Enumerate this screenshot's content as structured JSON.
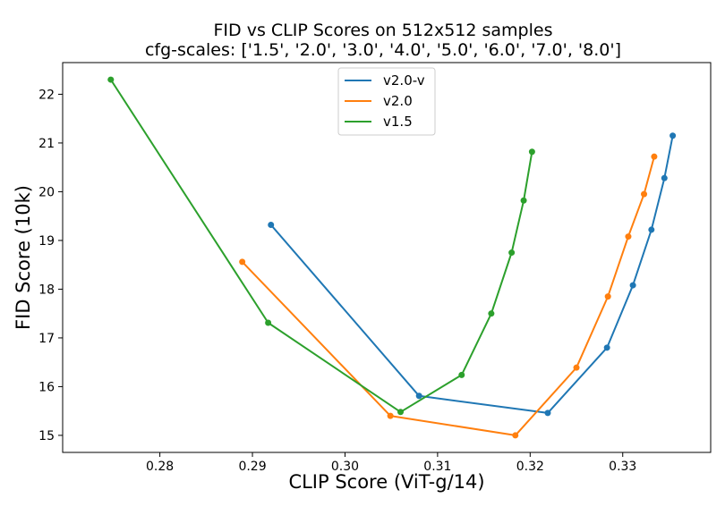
{
  "chart_data": {
    "type": "line",
    "title": "FID vs CLIP Scores on 512x512 samples",
    "subtitle": "cfg-scales: ['1.5', '2.0', '3.0', '4.0', '5.0', '6.0', '7.0', '8.0']",
    "xlabel": "CLIP Score (ViT-g/14)",
    "ylabel": "FID Score (10k)",
    "xlim": [
      0.2695,
      0.3395
    ],
    "ylim": [
      14.65,
      22.65
    ],
    "xticks": [
      0.28,
      0.29,
      0.3,
      0.31,
      0.32,
      0.33
    ],
    "xtick_labels": [
      "0.28",
      "0.29",
      "0.30",
      "0.31",
      "0.32",
      "0.33"
    ],
    "yticks": [
      15,
      16,
      17,
      18,
      19,
      20,
      21,
      22
    ],
    "ytick_labels": [
      "15",
      "16",
      "17",
      "18",
      "19",
      "20",
      "21",
      "22"
    ],
    "legend_position": "top-center",
    "series": [
      {
        "name": "v2.0-v",
        "color": "#1f77b4",
        "x": [
          0.292,
          0.308,
          0.3219,
          0.3283,
          0.3311,
          0.3331,
          0.3345,
          0.3354
        ],
        "y": [
          19.32,
          15.81,
          15.46,
          16.8,
          18.08,
          19.22,
          20.28,
          21.15
        ]
      },
      {
        "name": "v2.0",
        "color": "#ff7f0e",
        "x": [
          0.2889,
          0.3049,
          0.3184,
          0.325,
          0.3284,
          0.3306,
          0.3323,
          0.3334
        ],
        "y": [
          18.56,
          15.4,
          15.0,
          16.39,
          17.85,
          19.08,
          19.95,
          20.72
        ]
      },
      {
        "name": "v1.5",
        "color": "#2ca02c",
        "x": [
          0.2747,
          0.2917,
          0.306,
          0.3126,
          0.3158,
          0.318,
          0.3193,
          0.3202
        ],
        "y": [
          22.3,
          17.31,
          15.48,
          16.24,
          17.5,
          18.75,
          19.82,
          20.82
        ]
      }
    ]
  }
}
